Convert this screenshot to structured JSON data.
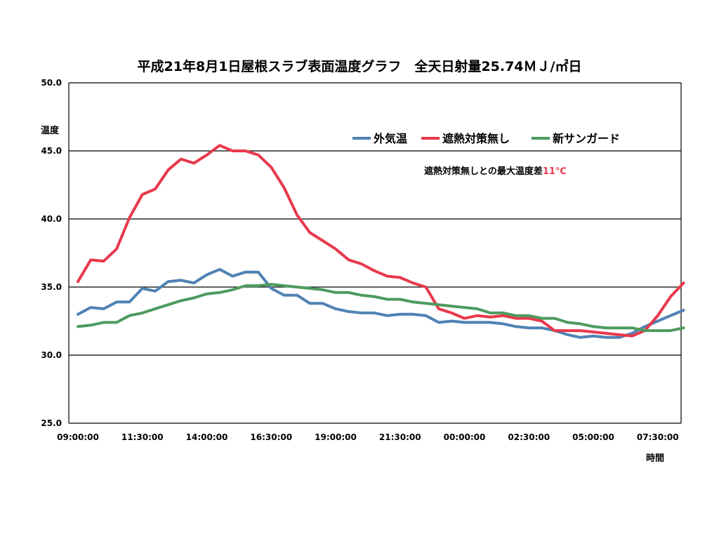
{
  "chart_data": {
    "type": "line",
    "title": "平成21年8月1日屋根スラブ表面温度グラフ　全天日射量25.74ＭＪ/㎡日",
    "xlabel": "時間",
    "ylabel": "温度",
    "ylim": [
      25,
      50
    ],
    "y_ticks": [
      "25.0",
      "30.0",
      "35.0",
      "40.0",
      "45.0",
      "50.0"
    ],
    "grid": "horizontal",
    "legend_position": "top-right",
    "x_ticks": [
      "09:00:00",
      "11:30:00",
      "14:00:00",
      "16:30:00",
      "19:00:00",
      "21:30:00",
      "00:00:00",
      "02:30:00",
      "05:00:00",
      "07:30:00"
    ],
    "annotation": {
      "prefix": "遮熱対策無しとの最大温度差",
      "value": "11℃",
      "value_color": "#e8394c"
    },
    "series": [
      {
        "name": "外気温",
        "color": "#4f82b4",
        "values": [
          33.0,
          33.5,
          33.4,
          33.9,
          33.9,
          34.9,
          34.7,
          35.4,
          35.5,
          35.3,
          35.9,
          36.3,
          35.8,
          36.1,
          36.1,
          34.9,
          34.4,
          34.4,
          33.8,
          33.8,
          33.4,
          33.2,
          33.1,
          33.1,
          32.9,
          33.0,
          33.0,
          32.9,
          32.4,
          32.5,
          32.4,
          32.4,
          32.4,
          32.3,
          32.1,
          32.0,
          32.0,
          31.8,
          31.5,
          31.3,
          31.4,
          31.3,
          31.3,
          31.6,
          32.1,
          32.5,
          32.9,
          33.3
        ]
      },
      {
        "name": "遮熱対策無し",
        "color": "#e8394c",
        "values": [
          35.4,
          37.0,
          36.9,
          37.8,
          40.1,
          41.8,
          42.2,
          43.6,
          44.4,
          44.1,
          44.7,
          45.4,
          45.0,
          45.0,
          44.7,
          43.8,
          42.3,
          40.3,
          39.0,
          38.4,
          37.8,
          37.0,
          36.7,
          36.2,
          35.8,
          35.7,
          35.3,
          35.0,
          33.4,
          33.1,
          32.7,
          32.9,
          32.8,
          32.9,
          32.7,
          32.7,
          32.5,
          31.8,
          31.8,
          31.8,
          31.7,
          31.6,
          31.5,
          31.4,
          31.8,
          32.9,
          34.3,
          35.3
        ]
      },
      {
        "name": "新サンガード",
        "color": "#4d9a5e",
        "values": [
          32.1,
          32.2,
          32.4,
          32.4,
          32.9,
          33.1,
          33.4,
          33.7,
          34.0,
          34.2,
          34.5,
          34.6,
          34.8,
          35.1,
          35.1,
          35.2,
          35.1,
          35.0,
          34.9,
          34.8,
          34.6,
          34.6,
          34.4,
          34.3,
          34.1,
          34.1,
          33.9,
          33.8,
          33.7,
          33.6,
          33.5,
          33.4,
          33.1,
          33.1,
          32.9,
          32.9,
          32.7,
          32.7,
          32.4,
          32.3,
          32.1,
          32.0,
          32.0,
          32.0,
          31.8,
          31.8,
          31.8,
          32.0
        ]
      }
    ]
  }
}
